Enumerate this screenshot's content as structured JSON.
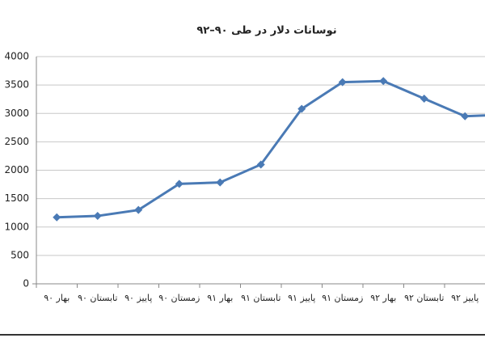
{
  "chart_data": {
    "type": "line",
    "title": "نوسانات دلار در طی ۹۰–۹۲",
    "categories": [
      "بهار ۹۰",
      "تابستان ۹۰",
      "پاییز ۹۰",
      "زمستان ۹۰",
      "بهار ۹۱",
      "تابستان ۹۱",
      "پاییز ۹۱",
      "زمستان ۹۱",
      "بهار ۹۲",
      "تابستان ۹۲",
      "پاییز ۹۲",
      null
    ],
    "series": [
      {
        "color": "#4a7ab5",
        "values": [
          1170,
          1195,
          1300,
          1760,
          1785,
          2100,
          3080,
          3550,
          3570,
          3260,
          2950,
          2980
        ]
      }
    ],
    "ylim": [
      0,
      4000
    ],
    "yticks": [
      0,
      500,
      1000,
      1500,
      2000,
      2500,
      3000,
      3500,
      4000
    ],
    "grid": true
  }
}
